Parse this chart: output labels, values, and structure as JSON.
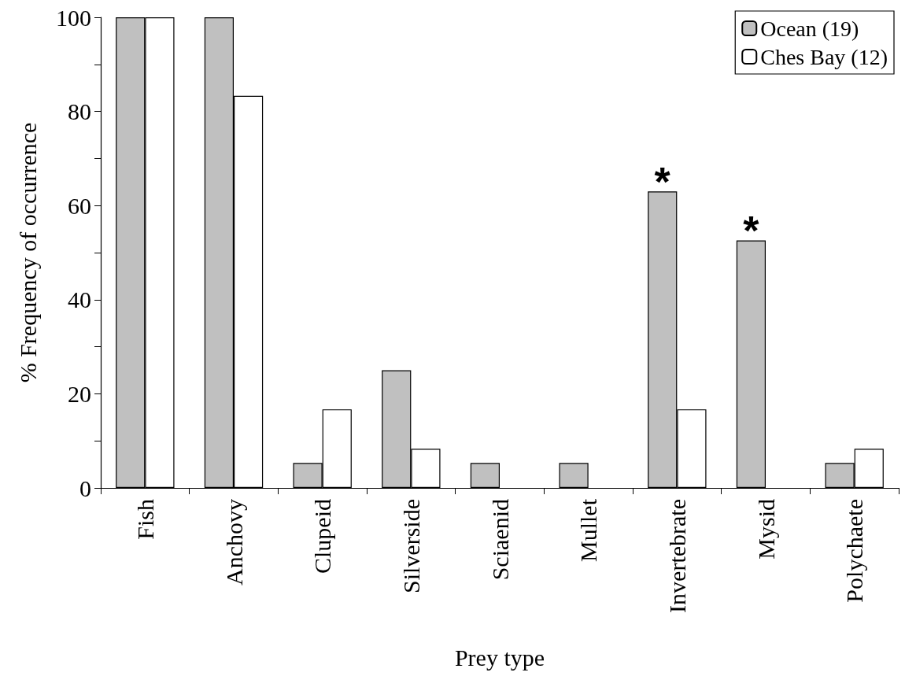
{
  "chart_data": {
    "type": "bar",
    "xlabel": "Prey type",
    "ylabel": "% Frequency of occurrence",
    "categories": [
      "Fish",
      "Anchovy",
      "Clupeid",
      "Silverside",
      "Sciaenid",
      "Mullet",
      "Invertebrate",
      "Mysid",
      "Polychaete"
    ],
    "series": [
      {
        "name": "Ocean (19)",
        "color": "#c0c0c0",
        "values": [
          100,
          100,
          5.3,
          25,
          5.3,
          5.3,
          63,
          52.6,
          5.3
        ]
      },
      {
        "name": "Ches Bay (12)",
        "color": "#ffffff",
        "values": [
          100,
          83.3,
          16.7,
          8.3,
          0,
          0,
          16.7,
          0,
          8.3
        ]
      }
    ],
    "ylim": [
      0,
      100
    ],
    "yticks": [
      0,
      {
        "value": 10,
        "label": null
      },
      20,
      {
        "value": 30,
        "label": null
      },
      40,
      {
        "value": 50,
        "label": null
      },
      60,
      {
        "value": 70,
        "label": null
      },
      80,
      {
        "value": 90,
        "label": null
      },
      100
    ],
    "annotations": [
      {
        "text": "*",
        "x": "Invertebrate",
        "y": 63
      },
      {
        "text": "*",
        "x": "Mysid",
        "y": 52.6
      }
    ],
    "legend": "top right",
    "grid": false
  }
}
